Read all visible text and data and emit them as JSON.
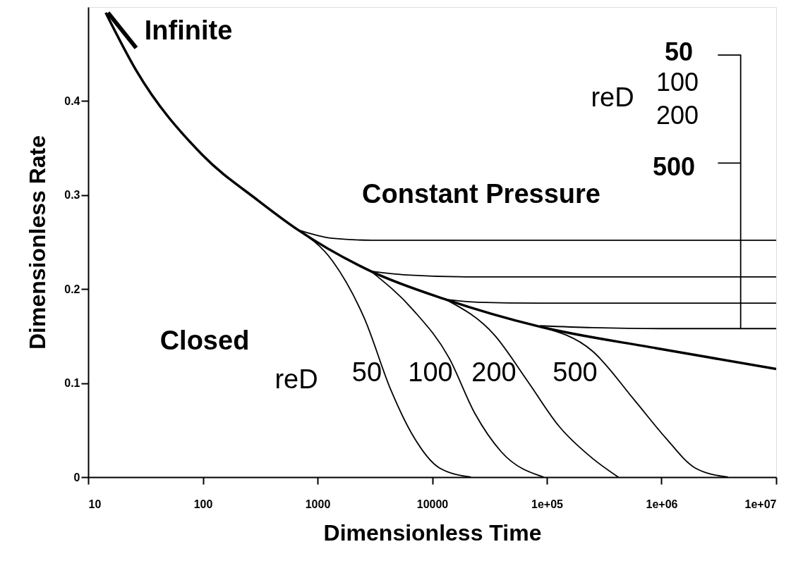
{
  "chart_data": {
    "type": "line",
    "xlabel": "Dimensionless Time",
    "ylabel": "Dimensionless Rate",
    "log": "x",
    "xlim": [
      10,
      10000000
    ],
    "ylim": [
      0,
      0.5
    ],
    "xticks": [
      10,
      100,
      1000,
      10000,
      {
        "value": 100000,
        "label": "1e+05"
      },
      {
        "value": 1000000,
        "label": "1e+06"
      },
      {
        "value": 10000000,
        "label": "1e+07"
      }
    ],
    "yticks": [
      0,
      0.1,
      0.2,
      0.3,
      0.4
    ],
    "grid": false,
    "marker": "none",
    "line_style": "solid",
    "series": [
      {
        "color": "#000000",
        "x": [
          14.2,
          26.1,
          98.6,
          305,
          675,
          2920,
          13100,
          87000,
          910000,
          10000000
        ],
        "values": [
          0.494,
          0.433,
          0.343,
          0.294,
          0.263,
          0.219,
          0.189,
          0.16,
          0.137,
          0.115
        ]
      },
      {
        "color": "#000000",
        "x": [
          675,
          1350,
          3000,
          10000000
        ],
        "values": [
          0.263,
          0.254,
          0.252,
          0.252
        ]
      },
      {
        "color": "#000000",
        "x": [
          2920,
          6000,
          20000,
          10000000
        ],
        "values": [
          0.219,
          0.215,
          0.213,
          0.213
        ]
      },
      {
        "color": "#000000",
        "x": [
          13100,
          25000,
          100000,
          10000000
        ],
        "values": [
          0.189,
          0.186,
          0.185,
          0.185
        ]
      },
      {
        "color": "#000000",
        "x": [
          87000,
          250000,
          1000000,
          10000000
        ],
        "values": [
          0.161,
          0.159,
          0.158,
          0.158
        ]
      },
      {
        "color": "#000000",
        "x": [
          675,
          1350,
          2580,
          4350,
          6800,
          11500,
          21800
        ],
        "values": [
          0.263,
          0.23,
          0.168,
          0.093,
          0.044,
          0.01,
          0
        ]
      },
      {
        "color": "#000000",
        "x": [
          2920,
          6800,
          14000,
          23500,
          40000,
          94000
        ],
        "values": [
          0.219,
          0.178,
          0.127,
          0.068,
          0.027,
          0
        ]
      },
      {
        "color": "#000000",
        "x": [
          13100,
          35000,
          68000,
          128000,
          250000,
          420000
        ],
        "values": [
          0.189,
          0.151,
          0.102,
          0.054,
          0.02,
          0
        ]
      },
      {
        "color": "#000000",
        "x": [
          87000,
          250000,
          580000,
          1100000,
          1950000,
          3800000
        ],
        "values": [
          0.16,
          0.134,
          0.082,
          0.041,
          0.01,
          0
        ]
      },
      {
        "type": "step",
        "color": "#000000",
        "x": [
          3100000,
          4900000
        ],
        "values": [
          0.449,
          0.158
        ]
      },
      {
        "color": "#000000",
        "x": [
          3100000,
          4900000
        ],
        "values": [
          0.334,
          0.334
        ]
      }
    ],
    "annotations": [
      "Infinite",
      "Constant Pressure",
      "Closed",
      "reD",
      "50",
      "100",
      "200",
      "500",
      "reD",
      "50",
      "100",
      "200",
      "500"
    ]
  }
}
